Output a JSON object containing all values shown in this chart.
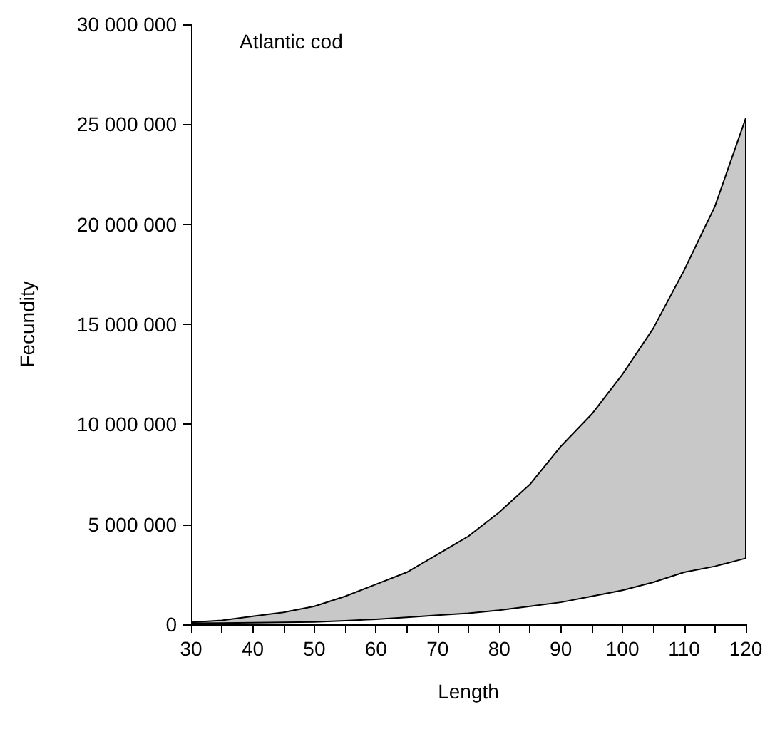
{
  "chart_data": {
    "type": "area",
    "xlabel": "Length",
    "ylabel": "Fecundity",
    "annotations": [
      "Atlantic cod"
    ],
    "x": [
      30,
      35,
      40,
      45,
      50,
      55,
      60,
      65,
      70,
      75,
      80,
      85,
      90,
      95,
      100,
      105,
      110,
      115,
      120
    ],
    "series": [
      {
        "type": "line",
        "color": "#000000",
        "values": [
          50000,
          60000,
          80000,
          100000,
          120000,
          180000,
          250000,
          350000,
          450000,
          550000,
          700000,
          900000,
          1100000,
          1400000,
          1700000,
          2100000,
          2600000,
          2900000,
          3300000
        ]
      },
      {
        "color": "#c8c8c8",
        "values": [
          100000,
          200000,
          400000,
          600000,
          900000,
          1400000,
          2000000,
          2600000,
          3500000,
          4400000,
          5600000,
          7000000,
          8900000,
          10500000,
          12500000,
          14800000,
          17700000,
          20900000,
          25300000
        ]
      }
    ],
    "xlim": [
      30,
      120
    ],
    "ylim": [
      0,
      30000000
    ],
    "xticks": [
      30,
      {
        "value": 35,
        "label": null
      },
      40,
      {
        "value": 45,
        "label": null
      },
      50,
      {
        "value": 55,
        "label": null
      },
      60,
      {
        "value": 65,
        "label": null
      },
      70,
      {
        "value": 75,
        "label": null
      },
      80,
      {
        "value": 85,
        "label": null
      },
      90,
      {
        "value": 95,
        "label": null
      },
      100,
      {
        "value": 105,
        "label": null
      },
      110,
      {
        "value": 115,
        "label": null
      },
      120
    ],
    "yticks": [
      0,
      {
        "value": 5000000,
        "label": "5 000 000"
      },
      {
        "value": 10000000,
        "label": "10 000 000"
      },
      {
        "value": 15000000,
        "label": "15 000 000"
      },
      {
        "value": 20000000,
        "label": "20 000 000"
      },
      {
        "value": 25000000,
        "label": "25 000 000"
      },
      {
        "value": 30000000,
        "label": "30 000 000"
      }
    ],
    "grid": false
  }
}
